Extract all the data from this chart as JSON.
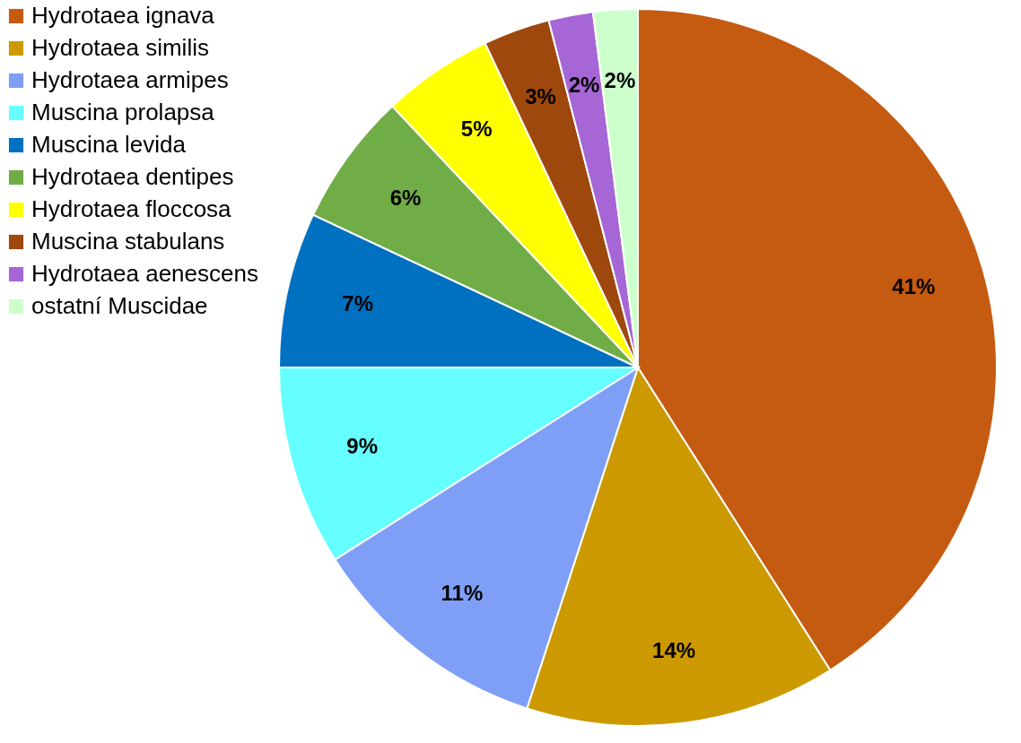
{
  "chart_data": {
    "type": "pie",
    "categories": [
      "Hydrotaea ignava",
      "Hydrotaea similis",
      "Hydrotaea armipes",
      "Muscina prolapsa",
      "Muscina levida",
      "Hydrotaea dentipes",
      "Hydrotaea floccosa",
      "Muscina stabulans",
      "Hydrotaea aenescens",
      "ostatní Muscidae"
    ],
    "values": [
      41,
      14,
      11,
      9,
      7,
      6,
      5,
      3,
      2,
      2
    ],
    "value_labels": [
      "41%",
      "14%",
      "11%",
      "9%",
      "7%",
      "6%",
      "5%",
      "3%",
      "2%",
      "2%"
    ],
    "colors": [
      "#c55a11",
      "#cc9900",
      "#7f9ff7",
      "#66ffff",
      "#0070c0",
      "#70ad47",
      "#ffff00",
      "#9e480e",
      "#a666d6",
      "#ccffcc"
    ],
    "legend": "left"
  }
}
